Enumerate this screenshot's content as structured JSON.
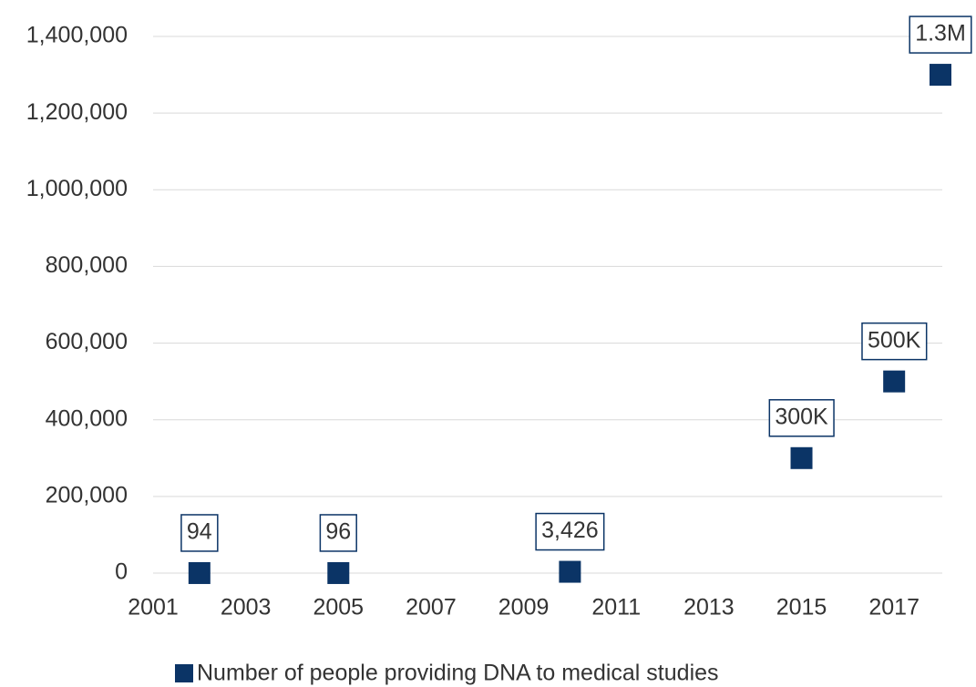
{
  "chart_data": {
    "type": "scatter",
    "series": [
      {
        "name": "Number of people providing DNA to medical studies",
        "color": "#0b3466",
        "x": [
          2002,
          2005,
          2010,
          2015,
          2017,
          2018
        ],
        "values": [
          94,
          96,
          3426,
          300000,
          500000,
          1300000
        ],
        "value_labels": [
          "94",
          "96",
          "3,426",
          "300K",
          "500K",
          "1.3M"
        ]
      }
    ],
    "xlim": [
      2001,
      2018
    ],
    "xticks": [
      2001,
      2003,
      2005,
      2007,
      2009,
      2011,
      2013,
      2015,
      2017
    ],
    "ylim": [
      0,
      1400000
    ],
    "yticks": [
      0,
      {
        "value": 200000,
        "label": "200,000"
      },
      {
        "value": 400000,
        "label": "400,000"
      },
      {
        "value": 600000,
        "label": "600,000"
      },
      {
        "value": 800000,
        "label": "800,000"
      },
      {
        "value": 1000000,
        "label": "1,000,000"
      },
      {
        "value": 1200000,
        "label": "1,200,000"
      },
      {
        "value": 1400000,
        "label": "1,400,000"
      }
    ],
    "grid": true,
    "legend": "bottom"
  }
}
